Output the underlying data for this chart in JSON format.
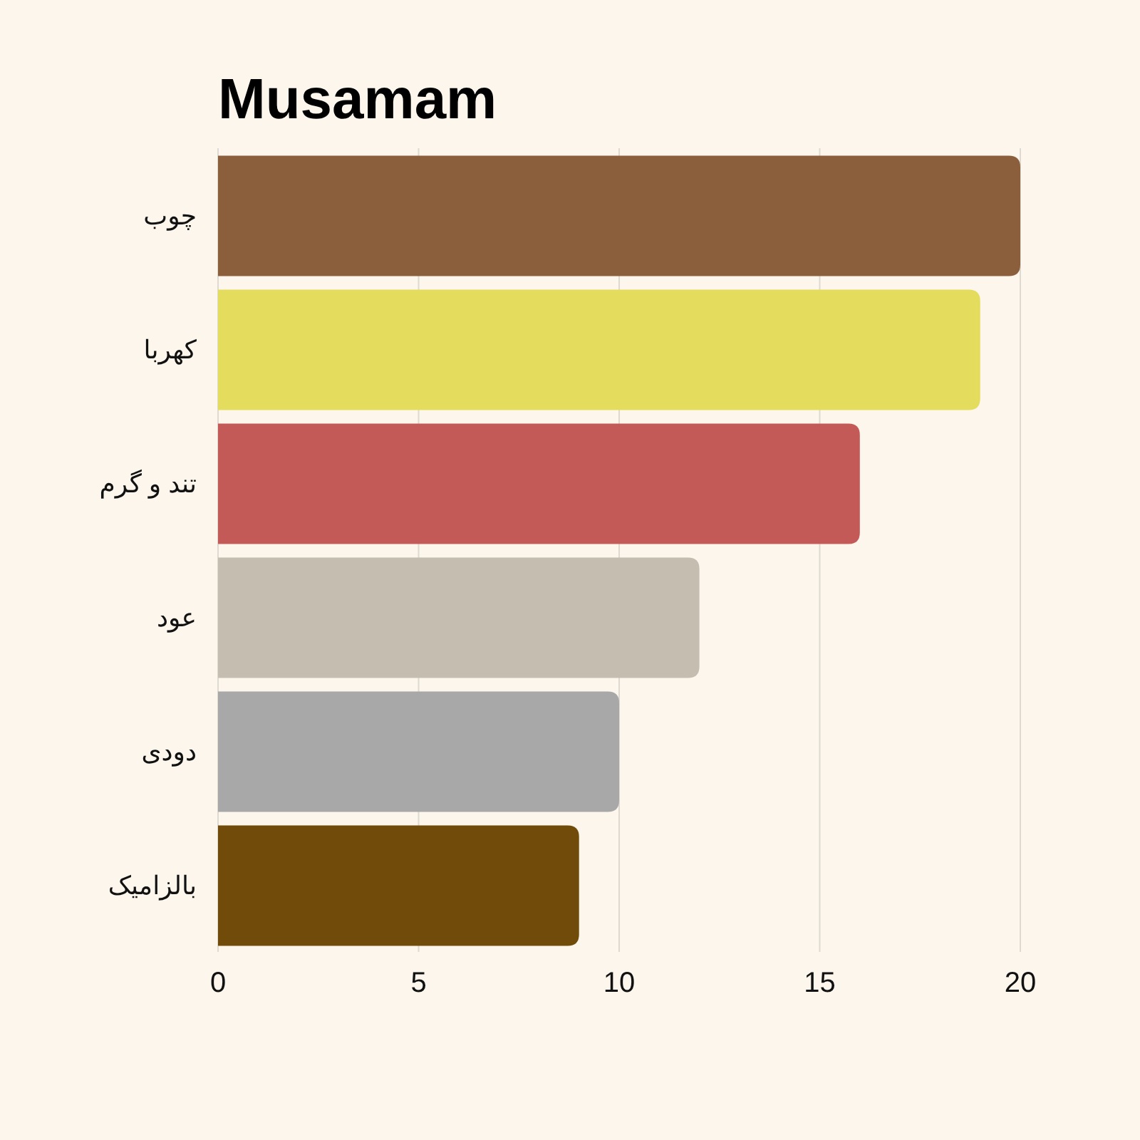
{
  "chart_data": {
    "type": "bar",
    "orientation": "horizontal",
    "title": "Musamam",
    "categories": [
      "چوب",
      "کهربا",
      "تند و گرم",
      "عود",
      "دودی",
      "بالزامیک"
    ],
    "values": [
      20,
      19,
      16,
      12,
      10,
      9
    ],
    "colors": [
      "#8b5e3c",
      "#e4dc5c",
      "#c45a58",
      "#c4bdb0",
      "#a8a8a8",
      "#704b0a"
    ],
    "xlim": [
      0,
      20
    ],
    "xticks": [
      0,
      5,
      10,
      15,
      20
    ],
    "grid": "x"
  }
}
